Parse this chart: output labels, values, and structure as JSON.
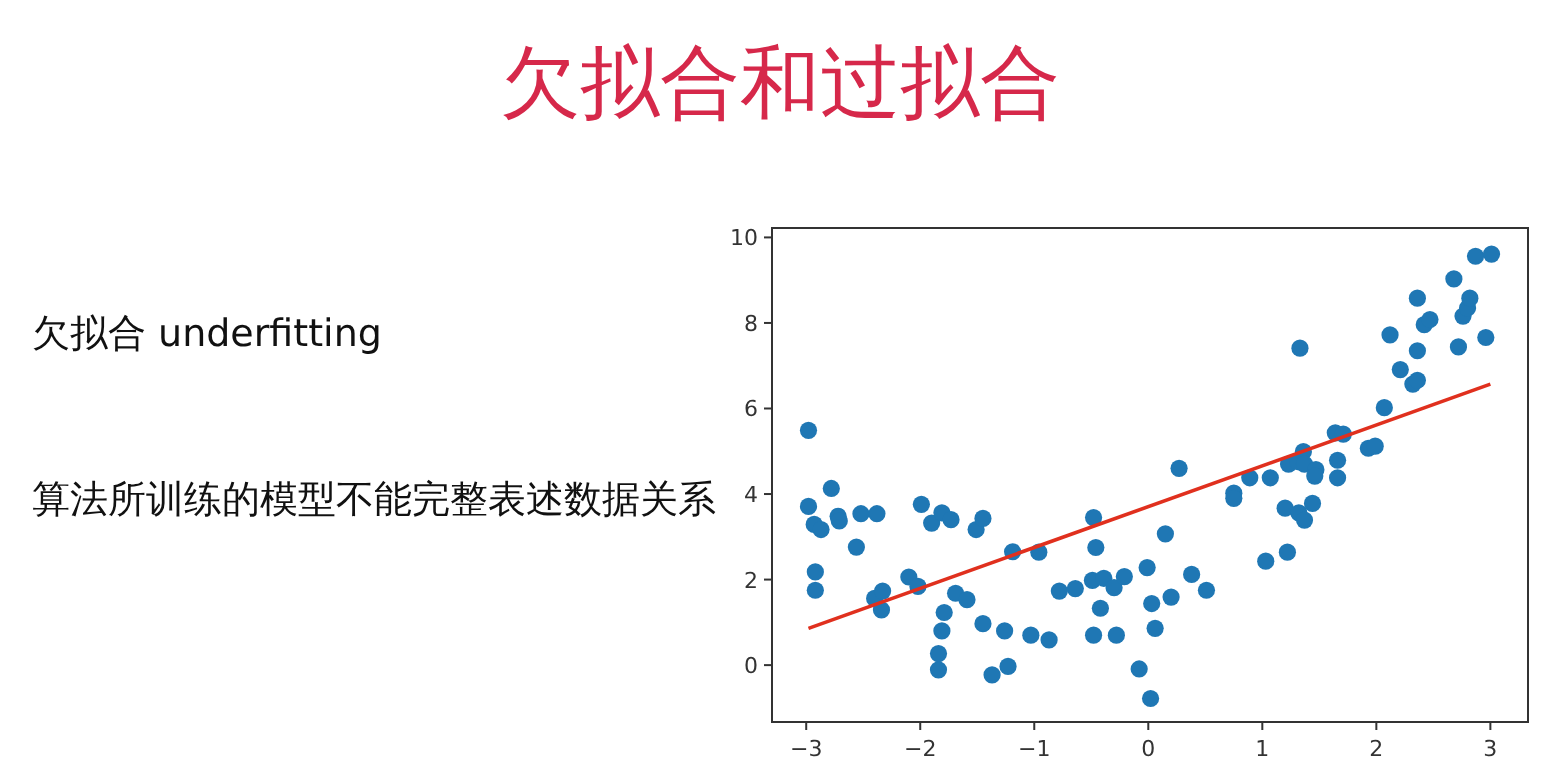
{
  "chart_data": {
    "type": "scatter",
    "title": "欠拟合和过拟合",
    "annotations": [
      "欠拟合 underfitting",
      "算法所训练的模型不能完整表述数据关系"
    ],
    "xlim": [
      -3.3,
      3.33
    ],
    "ylim": [
      -1.33,
      10.22
    ],
    "xticks": [
      -3,
      -2,
      -1,
      0,
      1,
      2,
      3
    ],
    "yticks": [
      0,
      2,
      4,
      6,
      8,
      10
    ],
    "grid": false,
    "marker": "circle",
    "series": [
      {
        "color": "#1f77b4",
        "x": [
          -2.98,
          -2.98,
          -2.93,
          -2.87,
          -2.92,
          -2.92,
          -2.78,
          -2.72,
          -2.71,
          -2.56,
          -2.52,
          -2.38,
          -2.4,
          -2.33,
          -2.34,
          -2.1,
          -2.02,
          -1.99,
          -1.9,
          -1.81,
          -1.73,
          -1.79,
          -1.81,
          -1.84,
          -1.84,
          -1.69,
          -1.59,
          -1.51,
          -1.45,
          -1.45,
          -1.37,
          -1.26,
          -1.23,
          -1.19,
          -1.03,
          -0.96,
          -0.87,
          -0.78,
          -0.64,
          -0.48,
          -0.46,
          -0.49,
          -0.39,
          -0.3,
          -0.21,
          -0.42,
          -0.48,
          -0.28,
          -0.01,
          0.03,
          0.06,
          -0.08,
          0.02,
          0.2,
          0.15,
          0.27,
          0.38,
          0.51,
          0.75,
          0.75,
          0.89,
          1.07,
          1.03,
          1.2,
          1.22,
          1.33,
          1.23,
          1.31,
          1.36,
          1.37,
          1.32,
          1.37,
          1.44,
          1.47,
          1.46,
          1.64,
          1.71,
          1.66,
          1.66,
          1.93,
          1.99,
          2.07,
          2.12,
          2.21,
          2.32,
          2.36,
          2.36,
          2.36,
          2.42,
          2.47,
          2.68,
          2.72,
          2.76,
          2.8,
          2.82,
          2.96,
          2.87,
          3.01
        ],
        "values": [
          5.49,
          3.71,
          3.29,
          3.17,
          2.18,
          1.75,
          4.13,
          3.48,
          3.37,
          2.76,
          3.54,
          3.54,
          1.56,
          1.73,
          1.29,
          2.06,
          1.84,
          3.76,
          3.32,
          3.56,
          3.4,
          1.23,
          0.8,
          0.27,
          -0.11,
          1.68,
          1.53,
          3.17,
          3.43,
          0.97,
          -0.23,
          0.8,
          -0.03,
          2.65,
          0.7,
          2.64,
          0.59,
          1.73,
          1.79,
          3.45,
          2.75,
          1.98,
          2.03,
          1.81,
          2.07,
          1.33,
          0.7,
          0.7,
          2.28,
          1.44,
          0.86,
          -0.09,
          -0.78,
          1.59,
          3.07,
          4.6,
          2.12,
          1.75,
          4.02,
          3.9,
          4.38,
          4.38,
          2.43,
          3.67,
          2.64,
          7.41,
          4.7,
          4.76,
          4.99,
          4.7,
          3.56,
          3.39,
          3.78,
          4.57,
          4.42,
          5.43,
          5.4,
          4.79,
          4.38,
          5.07,
          5.12,
          6.02,
          7.72,
          6.91,
          6.57,
          6.66,
          7.35,
          8.58,
          7.96,
          8.08,
          9.03,
          7.44,
          8.16,
          8.35,
          8.58,
          7.66,
          9.56,
          9.61
        ]
      },
      {
        "type": "line",
        "color": "#e0301e",
        "x": [
          -2.98,
          3.0
        ],
        "values": [
          0.86,
          6.57
        ],
        "marker": "none",
        "line_style": "solid"
      }
    ]
  }
}
